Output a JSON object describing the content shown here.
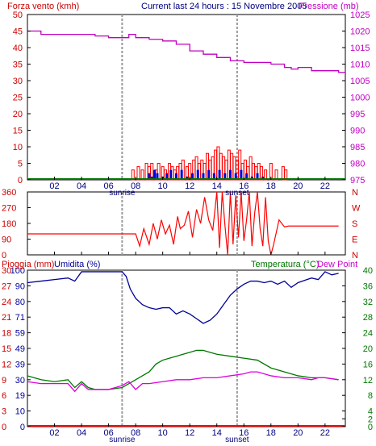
{
  "header": {
    "wind_label": "Forza vento (kmh)",
    "title": "Current last 24 hours : 15 Novembre 2005",
    "pressure_label": "Pressione (mb)"
  },
  "sun": {
    "sunrise_label": "sunrise",
    "sunset_label": "sunset"
  },
  "colors": {
    "wind": "#ff0000",
    "gust": "#ff0000",
    "direction": "#ff0000",
    "pressure": "#c000c0",
    "humidity": "#000099",
    "temperature": "#007700",
    "dewpoint": "#dd00dd",
    "rain": "#ff0000",
    "ground": "#007700",
    "calm_bars": "#0000dd"
  },
  "chart_data": [
    {
      "type": "bar",
      "panel": "wind-pressure",
      "x_ticks": [
        "02",
        "04",
        "06",
        "08",
        "10",
        "12",
        "14",
        "16",
        "18",
        "20",
        "22"
      ],
      "y_left": {
        "label": "Forza vento (kmh)",
        "ylim": [
          0,
          50
        ],
        "ticks": [
          0,
          5,
          10,
          15,
          20,
          25,
          30,
          35,
          40,
          45,
          50
        ]
      },
      "y_right": {
        "label": "Pressione (mb)",
        "ylim": [
          975,
          1025
        ],
        "ticks": [
          975,
          980,
          985,
          990,
          995,
          1000,
          1005,
          1010,
          1015,
          1020,
          1025
        ]
      },
      "gust_bars": [
        [
          7.8,
          3
        ],
        [
          8.2,
          4
        ],
        [
          8.5,
          3
        ],
        [
          8.8,
          5
        ],
        [
          9.0,
          4
        ],
        [
          9.2,
          5
        ],
        [
          9.5,
          3
        ],
        [
          9.7,
          5
        ],
        [
          10.0,
          4
        ],
        [
          10.2,
          3
        ],
        [
          10.5,
          5
        ],
        [
          10.7,
          4
        ],
        [
          10.9,
          3
        ],
        [
          11.1,
          4
        ],
        [
          11.3,
          5
        ],
        [
          11.5,
          6
        ],
        [
          11.8,
          4
        ],
        [
          12.0,
          5
        ],
        [
          12.3,
          6
        ],
        [
          12.5,
          7
        ],
        [
          12.7,
          5
        ],
        [
          12.9,
          6
        ],
        [
          13.1,
          5
        ],
        [
          13.3,
          8
        ],
        [
          13.5,
          6
        ],
        [
          13.7,
          7
        ],
        [
          13.9,
          9
        ],
        [
          14.1,
          10
        ],
        [
          14.3,
          8
        ],
        [
          14.5,
          7
        ],
        [
          14.7,
          6
        ],
        [
          14.9,
          9
        ],
        [
          15.1,
          8
        ],
        [
          15.3,
          7
        ],
        [
          15.5,
          6
        ],
        [
          15.7,
          9
        ],
        [
          15.9,
          5
        ],
        [
          16.1,
          6
        ],
        [
          16.3,
          4
        ],
        [
          16.5,
          7
        ],
        [
          16.7,
          5
        ],
        [
          16.9,
          4
        ],
        [
          17.1,
          5
        ],
        [
          17.3,
          4
        ],
        [
          17.6,
          3
        ],
        [
          18.0,
          5
        ],
        [
          18.4,
          3
        ],
        [
          18.9,
          4
        ],
        [
          19.1,
          3
        ]
      ],
      "wind_bars": [
        [
          9.0,
          2
        ],
        [
          9.2,
          1
        ],
        [
          9.4,
          3
        ],
        [
          9.6,
          2
        ],
        [
          10.0,
          1
        ],
        [
          10.3,
          2
        ],
        [
          10.6,
          3
        ],
        [
          11.0,
          2
        ],
        [
          11.4,
          3
        ],
        [
          11.8,
          1
        ],
        [
          12.2,
          2
        ],
        [
          12.6,
          3
        ],
        [
          13.0,
          2
        ],
        [
          13.4,
          3
        ],
        [
          13.8,
          2
        ],
        [
          14.2,
          3
        ],
        [
          14.6,
          2
        ],
        [
          15.0,
          3
        ],
        [
          15.4,
          2
        ],
        [
          15.8,
          3
        ],
        [
          16.2,
          2
        ],
        [
          16.6,
          1
        ],
        [
          17.0,
          2
        ],
        [
          17.4,
          1
        ]
      ],
      "pressure": {
        "x": [
          0,
          0.5,
          1,
          2,
          3,
          4,
          5,
          6,
          7,
          7.5,
          8,
          9,
          10,
          11,
          12,
          13,
          14,
          15,
          16,
          17,
          18,
          19,
          19.5,
          20,
          21,
          22,
          23
        ],
        "values": [
          1020.0,
          1020.0,
          1019.0,
          1019.0,
          1019.0,
          1019.0,
          1018.5,
          1018.0,
          1018.0,
          1019.0,
          1018.0,
          1017.5,
          1017.0,
          1016.0,
          1014.0,
          1013.0,
          1012.0,
          1011.0,
          1010.5,
          1010.5,
          1010.0,
          1009.0,
          1008.5,
          1009.0,
          1008.0,
          1008.0,
          1007.5
        ]
      }
    },
    {
      "type": "line",
      "panel": "wind-direction",
      "y_left": {
        "ylim": [
          0,
          360
        ],
        "ticks": [
          0,
          90,
          180,
          270,
          360
        ]
      },
      "y_right": {
        "ticks": [
          "N",
          "W",
          "S",
          "E",
          "N"
        ]
      },
      "direction": {
        "x": [
          0,
          1,
          2,
          3,
          4,
          5,
          6,
          7,
          8,
          8.3,
          8.6,
          9,
          9.3,
          9.6,
          9.9,
          10.2,
          10.5,
          10.8,
          11.1,
          11.3,
          11.6,
          11.9,
          12.2,
          12.5,
          12.8,
          13.1,
          13.4,
          13.7,
          14,
          14.2,
          14.4,
          14.6,
          14.8,
          15,
          15.2,
          15.4,
          15.6,
          15.8,
          16,
          16.2,
          16.4,
          16.6,
          16.8,
          17,
          17.2,
          17.4,
          17.6,
          17.8,
          18,
          18.2,
          18.4,
          18.6,
          19,
          19.3,
          19.6,
          20,
          21,
          22,
          23
        ],
        "values": [
          120,
          120,
          120,
          120,
          120,
          120,
          120,
          120,
          120,
          50,
          150,
          60,
          180,
          90,
          200,
          120,
          170,
          60,
          220,
          150,
          170,
          250,
          100,
          260,
          180,
          330,
          200,
          140,
          360,
          40,
          360,
          170,
          0,
          360,
          60,
          340,
          100,
          360,
          80,
          200,
          360,
          50,
          240,
          360,
          150,
          50,
          330,
          80,
          0,
          60,
          130,
          200,
          160,
          165,
          165,
          165,
          165,
          165,
          165
        ]
      }
    },
    {
      "type": "line",
      "panel": "humidity-temperature",
      "xlabel": "",
      "y_left_rain": {
        "label": "Pioggia (mm)",
        "ticks": [
          0,
          3,
          6,
          9,
          12,
          15,
          18,
          21,
          24,
          27,
          30
        ]
      },
      "y_left_humidity": {
        "label": "Umidita (%)",
        "ylim": [
          0,
          100
        ],
        "ticks": [
          0,
          10,
          19,
          30,
          39,
          49,
          59,
          71,
          80,
          90,
          100
        ]
      },
      "y_right": {
        "label": "Temperatura (°C)",
        "label2": "Dew Point",
        "ylim": [
          0,
          40
        ],
        "ticks": [
          0,
          2,
          4,
          8,
          12,
          16,
          20,
          24,
          28,
          32,
          36,
          40
        ]
      },
      "humidity": {
        "x": [
          0,
          1,
          2,
          3,
          3.5,
          4,
          5,
          6,
          7,
          7.3,
          7.6,
          8,
          8.5,
          9,
          9.5,
          10,
          10.5,
          11,
          11.5,
          12,
          12.5,
          13,
          13.5,
          14,
          14.5,
          15,
          15.5,
          16,
          16.5,
          17,
          17.5,
          18,
          18.5,
          19,
          19.5,
          20,
          21,
          21.5,
          22,
          22.5,
          23
        ],
        "values": [
          92,
          93,
          94,
          95,
          93,
          99,
          99,
          99,
          99,
          96,
          88,
          82,
          78,
          76,
          75,
          76,
          76,
          72,
          74,
          72,
          69,
          66,
          68,
          72,
          78,
          84,
          88,
          91,
          93,
          93,
          92,
          93,
          91,
          93,
          89,
          92,
          95,
          94,
          99,
          97,
          98
        ]
      },
      "temperature": {
        "x": [
          0,
          1,
          2,
          3,
          3.5,
          4,
          4.5,
          5,
          6,
          7,
          7.5,
          8,
          8.5,
          9,
          9.5,
          10,
          10.5,
          11,
          11.5,
          12,
          12.5,
          13,
          13.5,
          14,
          15,
          16,
          17,
          18,
          19,
          20,
          21,
          22,
          23
        ],
        "values": [
          13.0,
          12.0,
          11.5,
          12.0,
          10.0,
          11.5,
          10.0,
          9.5,
          9.5,
          10.0,
          11.0,
          12.0,
          13.0,
          14.0,
          16.0,
          17.0,
          17.5,
          18.0,
          18.5,
          19.0,
          19.5,
          19.5,
          19.0,
          18.5,
          18.0,
          17.5,
          17.0,
          15.0,
          14.0,
          13.0,
          12.5,
          12.5,
          12.0
        ]
      },
      "dewpoint": {
        "x": [
          0,
          1,
          2,
          3,
          3.5,
          4,
          4.5,
          5,
          6,
          7,
          7.5,
          8,
          8.5,
          9,
          10,
          11,
          12,
          13,
          14,
          15,
          16,
          16.5,
          17,
          17.5,
          18,
          19,
          20,
          21,
          21.5,
          22,
          23
        ],
        "values": [
          11.5,
          11.0,
          11.0,
          11.0,
          9.0,
          11.0,
          9.5,
          9.5,
          9.5,
          10.5,
          11.5,
          9.5,
          11.0,
          11.0,
          11.5,
          12.0,
          12.0,
          12.5,
          12.5,
          13.0,
          13.5,
          14.0,
          14.0,
          13.5,
          13.0,
          12.5,
          12.5,
          12.0,
          12.5,
          12.5,
          12.0
        ]
      },
      "rain": {
        "x": [
          0,
          23
        ],
        "values": [
          0,
          0
        ]
      }
    }
  ]
}
